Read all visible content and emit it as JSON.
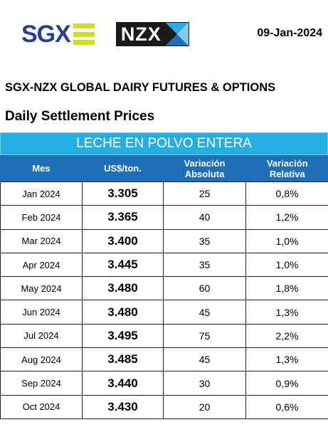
{
  "logos": {
    "sgx": "SGX",
    "nzx": "NZX"
  },
  "date": "09-Jan-2024",
  "title": "SGX-NZX GLOBAL DAIRY FUTURES & OPTIONS",
  "subtitle": "Daily Settlement Prices",
  "product": "LECHE EN POLVO ENTERA",
  "columns": [
    "Mes",
    "US$/ton.",
    "Variación Absoluta",
    "Variación Relativa"
  ],
  "colors": {
    "banner": "#25aee3",
    "header": "#1f6fb8",
    "sgx_blue": "#2a3e8f",
    "sgx_green": "#d4dd25"
  },
  "rows": [
    {
      "mes": "Jan 2024",
      "price": "3.305",
      "abs": "25",
      "rel": "0,8%"
    },
    {
      "mes": "Feb 2024",
      "price": "3.365",
      "abs": "40",
      "rel": "1,2%"
    },
    {
      "mes": "Mar 2024",
      "price": "3.400",
      "abs": "35",
      "rel": "1,0%"
    },
    {
      "mes": "Apr 2024",
      "price": "3.445",
      "abs": "35",
      "rel": "1,0%"
    },
    {
      "mes": "May 2024",
      "price": "3.480",
      "abs": "60",
      "rel": "1,8%"
    },
    {
      "mes": "Jun 2024",
      "price": "3.480",
      "abs": "45",
      "rel": "1,3%"
    },
    {
      "mes": "Jul 2024",
      "price": "3.495",
      "abs": "75",
      "rel": "2,2%"
    },
    {
      "mes": "Aug 2024",
      "price": "3.485",
      "abs": "45",
      "rel": "1,3%"
    },
    {
      "mes": "Sep 2024",
      "price": "3.440",
      "abs": "30",
      "rel": "0,9%"
    },
    {
      "mes": "Oct 2024",
      "price": "3.430",
      "abs": "20",
      "rel": "0,6%"
    }
  ]
}
